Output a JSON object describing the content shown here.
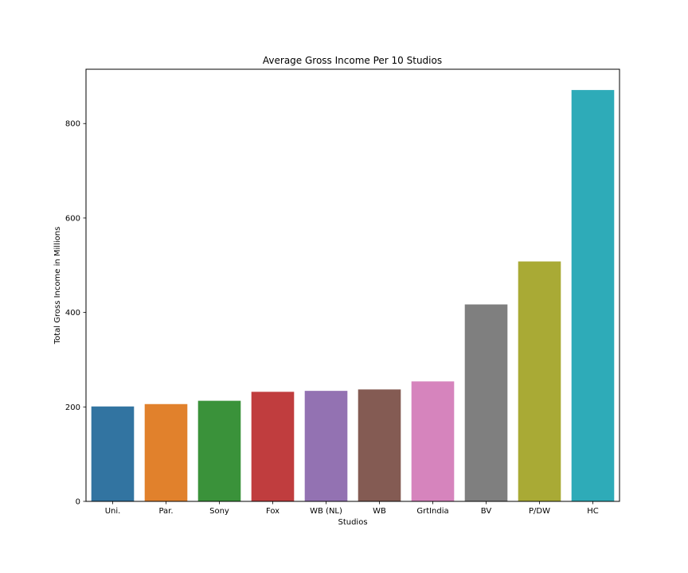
{
  "chart_data": {
    "type": "bar",
    "title": "Average Gross Income Per 10 Studios",
    "xlabel": "Studios",
    "ylabel": "Total Gross Income in Millions",
    "categories": [
      "Uni.",
      "Par.",
      "Sony",
      "Fox",
      "WB (NL)",
      "WB",
      "GrtIndia",
      "BV",
      "P/DW",
      "HC"
    ],
    "values": [
      201,
      206,
      213,
      232,
      234,
      237,
      254,
      417,
      508,
      871
    ],
    "colors": [
      "#3274a1",
      "#e1812c",
      "#3a923a",
      "#c03d3e",
      "#9372b2",
      "#845b53",
      "#d684bd",
      "#7f7f7f",
      "#a9aa35",
      "#2eabb8"
    ],
    "ylim": [
      0,
      915
    ],
    "yticks": [
      0,
      200,
      400,
      600,
      800
    ],
    "grid": false,
    "legend": "none"
  }
}
